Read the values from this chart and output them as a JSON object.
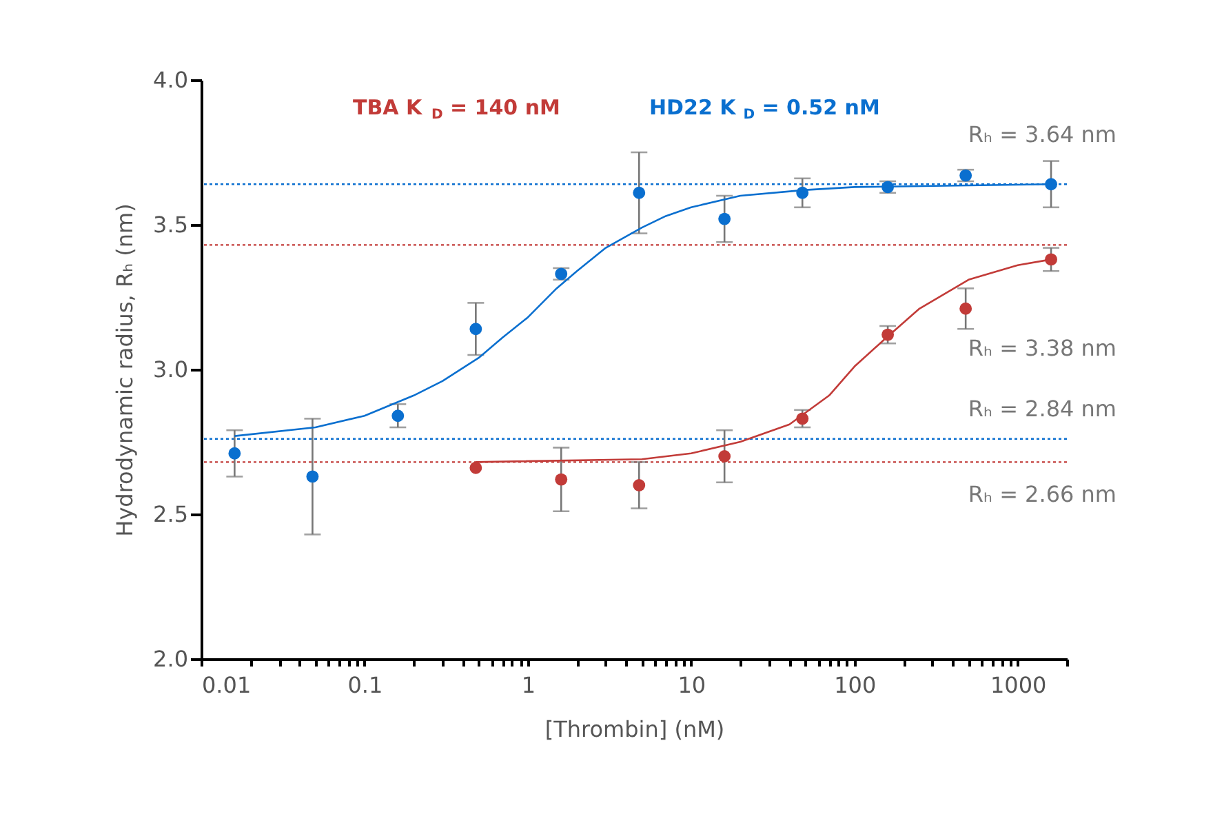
{
  "chart_data": {
    "type": "scatter",
    "xlabel": "[Thrombin] (nM)",
    "ylabel": "Hydrodynamic radius, Rₕ (nm)",
    "log": "x",
    "grid": false,
    "legend": "top",
    "marker": "circle",
    "xlim": [
      0.01,
      2000
    ],
    "ylim": [
      2.0,
      4.0
    ],
    "xticks": [
      {
        "value": 0.01,
        "label": "0.01"
      },
      {
        "value": 0.02,
        "label": null
      },
      {
        "value": 0.03,
        "label": null
      },
      {
        "value": 0.04,
        "label": null
      },
      {
        "value": 0.05,
        "label": null
      },
      {
        "value": 0.06,
        "label": null
      },
      {
        "value": 0.07,
        "label": null
      },
      {
        "value": 0.08,
        "label": null
      },
      {
        "value": 0.09,
        "label": null
      },
      {
        "value": 0.1,
        "label": "0.1"
      },
      {
        "value": 0.2,
        "label": null
      },
      {
        "value": 0.3,
        "label": null
      },
      {
        "value": 0.4,
        "label": null
      },
      {
        "value": 0.5,
        "label": null
      },
      {
        "value": 0.6,
        "label": null
      },
      {
        "value": 0.7,
        "label": null
      },
      {
        "value": 0.8,
        "label": null
      },
      {
        "value": 0.9,
        "label": null
      },
      1,
      {
        "value": 2,
        "label": null
      },
      {
        "value": 3,
        "label": null
      },
      {
        "value": 4,
        "label": null
      },
      {
        "value": 5,
        "label": null
      },
      {
        "value": 6,
        "label": null
      },
      {
        "value": 7,
        "label": null
      },
      {
        "value": 8,
        "label": null
      },
      {
        "value": 9,
        "label": null
      },
      10,
      {
        "value": 20,
        "label": null
      },
      {
        "value": 30,
        "label": null
      },
      {
        "value": 40,
        "label": null
      },
      {
        "value": 50,
        "label": null
      },
      {
        "value": 60,
        "label": null
      },
      {
        "value": 70,
        "label": null
      },
      {
        "value": 80,
        "label": null
      },
      {
        "value": 90,
        "label": null
      },
      100,
      {
        "value": 200,
        "label": null
      },
      {
        "value": 300,
        "label": null
      },
      {
        "value": 400,
        "label": null
      },
      {
        "value": 500,
        "label": null
      },
      {
        "value": 600,
        "label": null
      },
      {
        "value": 700,
        "label": null
      },
      {
        "value": 800,
        "label": null
      },
      {
        "value": 900,
        "label": null
      },
      1000,
      {
        "value": 2000,
        "label": null
      }
    ],
    "yticks": [
      {
        "value": 2.0,
        "label": "2.0"
      },
      {
        "value": 2.5,
        "label": "2.5"
      },
      {
        "value": 3.0,
        "label": "3.0"
      },
      {
        "value": 3.5,
        "label": "3.5"
      },
      {
        "value": 4.0,
        "label": "4.0"
      }
    ],
    "series": [
      {
        "name": "TBA  K$_{D}$ = 140 nM",
        "color": "#c23b38",
        "x": [
          0.48,
          1.6,
          4.8,
          16,
          48,
          160,
          480,
          1600
        ],
        "values": [
          2.66,
          2.62,
          2.6,
          2.7,
          2.83,
          3.12,
          3.21,
          3.38
        ],
        "errors": [
          null,
          0.11,
          0.08,
          0.09,
          0.03,
          0.03,
          0.07,
          0.04
        ]
      },
      {
        "name": "HD22  K$_{D}$ = 0.52 nM",
        "color": "#0a6fcf",
        "x": [
          0.016,
          0.048,
          0.16,
          0.48,
          1.6,
          4.8,
          16,
          48,
          160,
          480,
          1600
        ],
        "values": [
          2.71,
          2.63,
          2.84,
          3.14,
          3.33,
          3.61,
          3.52,
          3.61,
          3.63,
          3.67,
          3.64
        ],
        "errors": [
          0.08,
          0.2,
          0.04,
          0.09,
          0.02,
          0.14,
          0.08,
          0.05,
          0.02,
          0.02,
          0.08
        ]
      },
      {
        "type": "line",
        "marker": "none",
        "line_style": "solid",
        "color": "#c23b38",
        "x": [
          0.48,
          5,
          10,
          20,
          40,
          70,
          100,
          150,
          250,
          500,
          1000,
          1600
        ],
        "values": [
          2.68,
          2.69,
          2.71,
          2.75,
          2.81,
          2.91,
          3.01,
          3.1,
          3.21,
          3.31,
          3.36,
          3.38
        ]
      },
      {
        "type": "line",
        "marker": "none",
        "line_style": "solid",
        "color": "#0a6fcf",
        "x": [
          0.016,
          0.05,
          0.1,
          0.2,
          0.3,
          0.5,
          0.7,
          1,
          1.5,
          2,
          3,
          5,
          7,
          10,
          20,
          50,
          100,
          1600
        ],
        "values": [
          2.77,
          2.8,
          2.84,
          2.91,
          2.96,
          3.04,
          3.11,
          3.18,
          3.28,
          3.34,
          3.42,
          3.49,
          3.53,
          3.56,
          3.6,
          3.62,
          3.63,
          3.64
        ]
      }
    ],
    "ref_lines": [
      {
        "axis": "y",
        "value": 3.64,
        "color": "#0a6fcf",
        "line_style": "dotted"
      },
      {
        "axis": "y",
        "value": 3.43,
        "color": "#c23b38",
        "line_style": "dotted"
      },
      {
        "axis": "y",
        "value": 2.76,
        "color": "#0a6fcf",
        "line_style": "dotted"
      },
      {
        "axis": "y",
        "value": 2.68,
        "color": "#c23b38",
        "line_style": "dotted"
      }
    ],
    "annotations": [
      "Rₕ = 3.64 nm",
      "Rₕ = 3.38 nm",
      "Rₕ = 2.84 nm",
      "Rₕ = 2.66 nm"
    ]
  }
}
